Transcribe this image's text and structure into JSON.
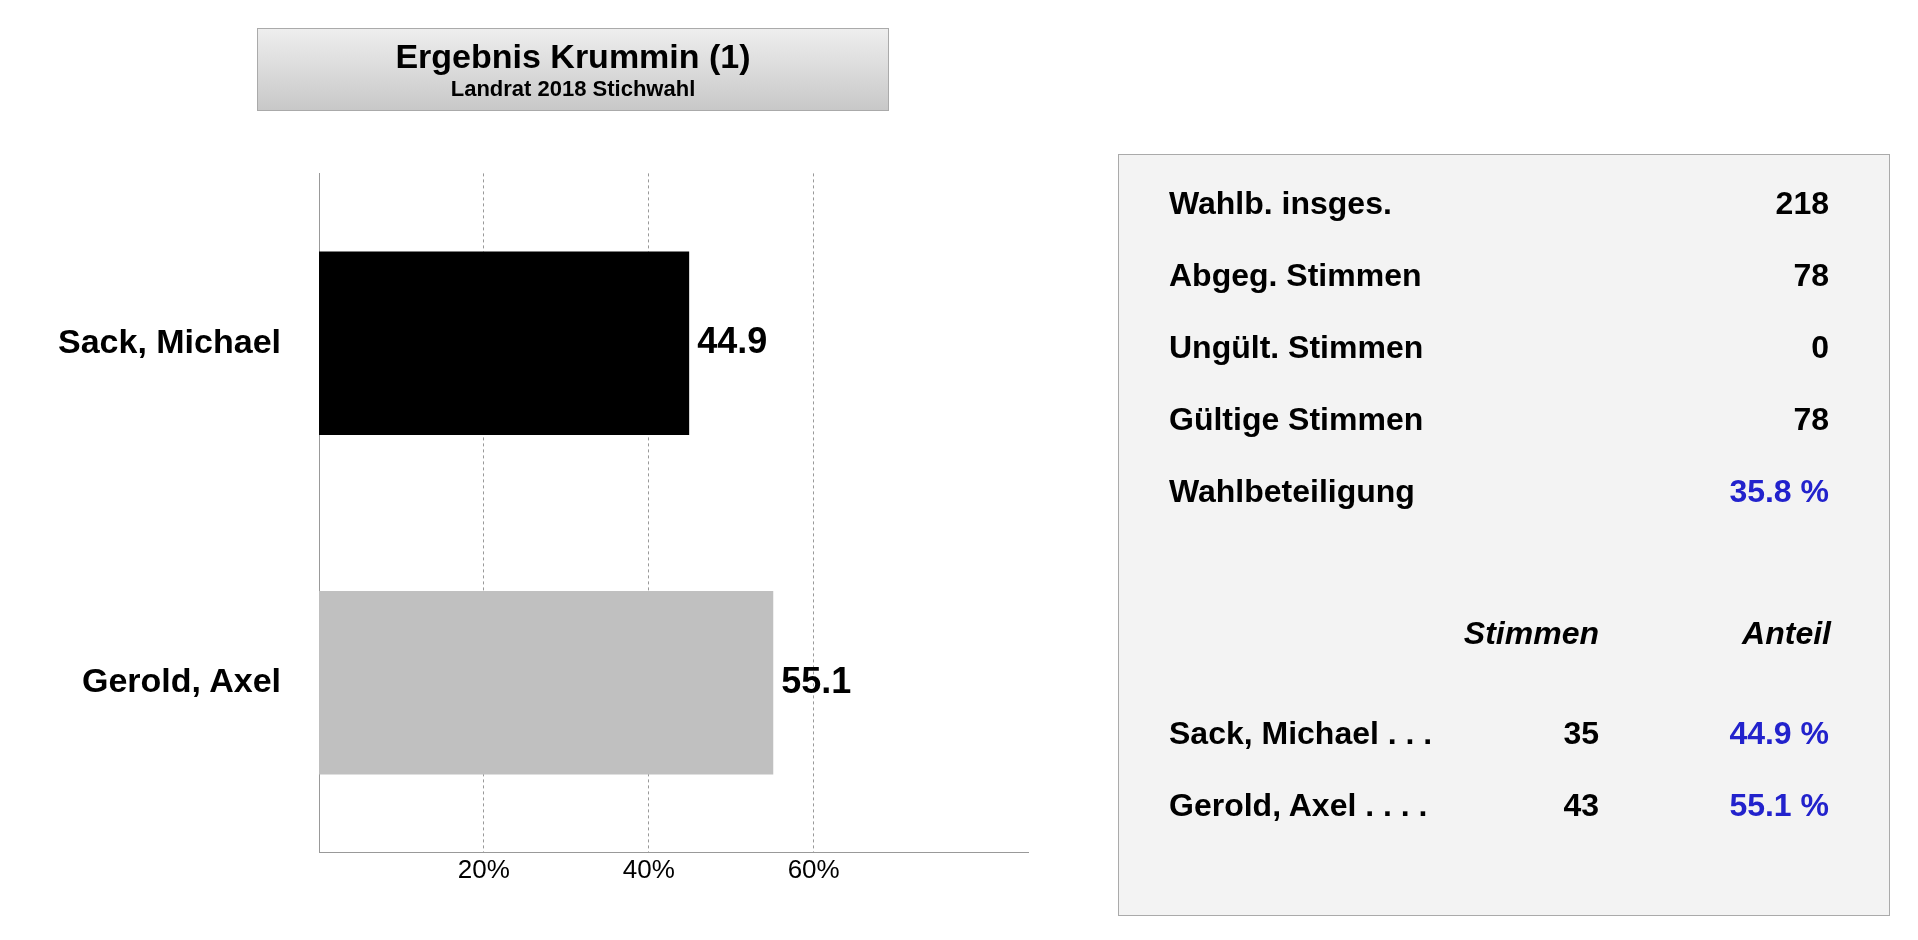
{
  "chart_data": [
    {
      "type": "bar",
      "orientation": "horizontal",
      "title": "Ergebnis Krummin (1)",
      "subtitle": "Landrat 2018 Stichwahl",
      "categories": [
        "Sack, Michael",
        "Gerold, Axel"
      ],
      "values": [
        44.9,
        55.1
      ],
      "colors": [
        "#000000",
        "#c0c0c0"
      ],
      "xlim": [
        0,
        86
      ],
      "xticks": [
        {
          "value": 20,
          "label": "20%"
        },
        {
          "value": 40,
          "label": "40%"
        },
        {
          "value": 60,
          "label": "60%"
        }
      ],
      "grid": "x",
      "data_labels": true,
      "legend": false
    },
    {
      "type": "other",
      "annotations": [
        "Wahlb. insges.",
        "218",
        "Abgeg. Stimmen",
        "78",
        "Ungült. Stimmen",
        "0",
        "Gültige Stimmen",
        "78",
        "Wahlbeteiligung",
        "35.8 %",
        "Stimmen",
        "Anteil",
        "Sack, Michael . . .",
        "35",
        "44.9 %",
        "Gerold, Axel . . . .",
        "43",
        "55.1 %"
      ]
    }
  ]
}
